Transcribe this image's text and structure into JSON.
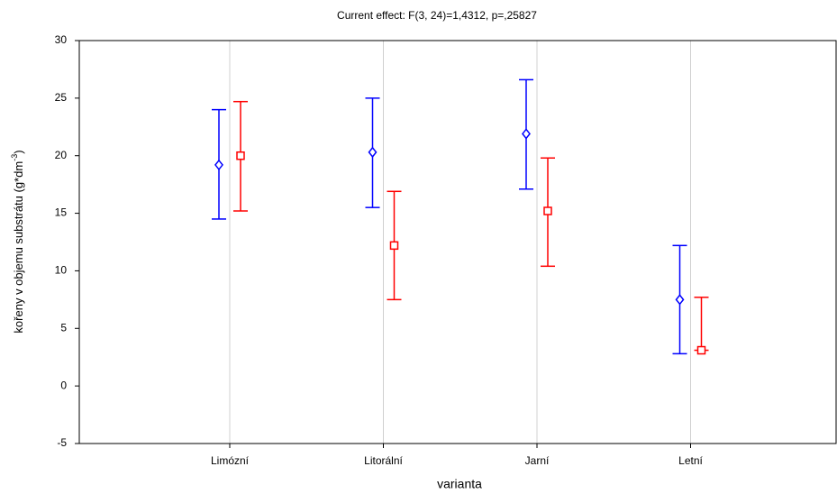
{
  "chart_data": {
    "type": "errorbar",
    "title": "Current effect: F(3, 24)=1,4312, p=,25827",
    "x_label": "varianta",
    "y_label": {
      "text": "kořeny v objemu substrátu (g*dm",
      "sup": "-3",
      "end": ")"
    },
    "categories": [
      "Limózní",
      "Litorální",
      "Jarní",
      "Letní"
    ],
    "series": [
      {
        "color": "#0000ff",
        "marker": "diamond",
        "values": [
          19.2,
          20.3,
          21.9,
          7.5
        ],
        "lower": [
          14.5,
          15.5,
          17.1,
          2.8
        ],
        "upper": [
          24.0,
          25.0,
          26.6,
          12.2
        ]
      },
      {
        "color": "#ff0000",
        "marker": "square",
        "values": [
          20.0,
          12.2,
          15.2,
          3.1
        ],
        "lower": [
          15.2,
          7.5,
          10.4,
          3.1
        ],
        "upper": [
          24.7,
          16.9,
          19.8,
          7.7
        ]
      }
    ],
    "ylim": [
      -5,
      30
    ],
    "yticks": [
      -5,
      0,
      5,
      10,
      15,
      20,
      25,
      30
    ],
    "grid": true
  }
}
